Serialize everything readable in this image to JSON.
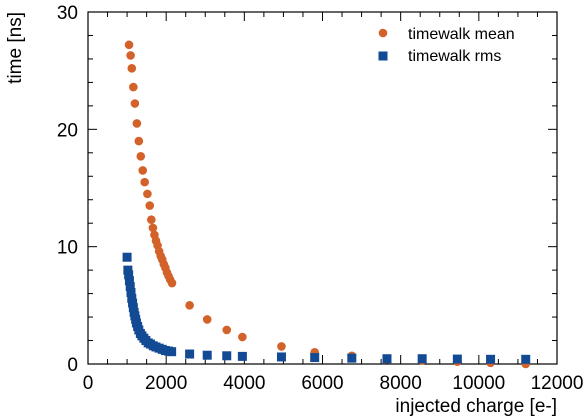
{
  "chart_data": {
    "type": "scatter",
    "title": "",
    "xlabel": "injected charge [e-]",
    "ylabel": "time [ns]",
    "xlim": [
      0,
      12000
    ],
    "ylim": [
      0,
      30
    ],
    "x_ticks": [
      "0",
      "2000",
      "4000",
      "6000",
      "8000",
      "10000",
      "12000"
    ],
    "y_ticks": [
      "0",
      "10",
      "20",
      "30"
    ],
    "grid": false,
    "legend_position": "top-right",
    "series": [
      {
        "name": "timewalk mean",
        "marker": "circle",
        "color": "#d2622a",
        "x": [
          1050,
          1090,
          1120,
          1160,
          1200,
          1250,
          1300,
          1350,
          1400,
          1450,
          1520,
          1580,
          1620,
          1660,
          1700,
          1740,
          1780,
          1820,
          1860,
          1900,
          1940,
          1980,
          2020,
          2060,
          2100,
          2150,
          2600,
          3050,
          3550,
          3950,
          4950,
          5800,
          6750,
          7650,
          8550,
          9450,
          10300,
          11200
        ],
        "y": [
          27.2,
          26.3,
          25.2,
          23.6,
          22.2,
          20.5,
          19.0,
          17.7,
          16.5,
          15.5,
          14.5,
          13.5,
          12.3,
          11.6,
          11.0,
          10.5,
          10.1,
          9.6,
          9.2,
          8.9,
          8.5,
          8.2,
          7.8,
          7.5,
          7.2,
          6.9,
          5.0,
          3.8,
          2.9,
          2.3,
          1.5,
          1.0,
          0.7,
          0.4,
          0.3,
          0.2,
          0.1,
          0.0
        ]
      },
      {
        "name": "timewalk rms",
        "marker": "square",
        "color": "#134a94",
        "x": [
          1000,
          1020,
          1040,
          1060,
          1080,
          1100,
          1120,
          1140,
          1160,
          1180,
          1200,
          1220,
          1240,
          1270,
          1300,
          1340,
          1380,
          1430,
          1480,
          1540,
          1600,
          1670,
          1740,
          1820,
          1900,
          1980,
          2060,
          2140,
          2600,
          3050,
          3550,
          3950,
          4950,
          5800,
          6750,
          7650,
          8550,
          9450,
          10300,
          11200
        ],
        "y": [
          9.1,
          8.0,
          7.6,
          7.1,
          6.6,
          6.1,
          5.6,
          5.2,
          4.8,
          4.4,
          4.1,
          3.8,
          3.5,
          3.2,
          2.9,
          2.6,
          2.4,
          2.2,
          2.0,
          1.8,
          1.7,
          1.55,
          1.45,
          1.35,
          1.25,
          1.15,
          1.1,
          1.05,
          0.85,
          0.75,
          0.7,
          0.65,
          0.6,
          0.55,
          0.5,
          0.45,
          0.45,
          0.42,
          0.4,
          0.4
        ]
      }
    ]
  }
}
